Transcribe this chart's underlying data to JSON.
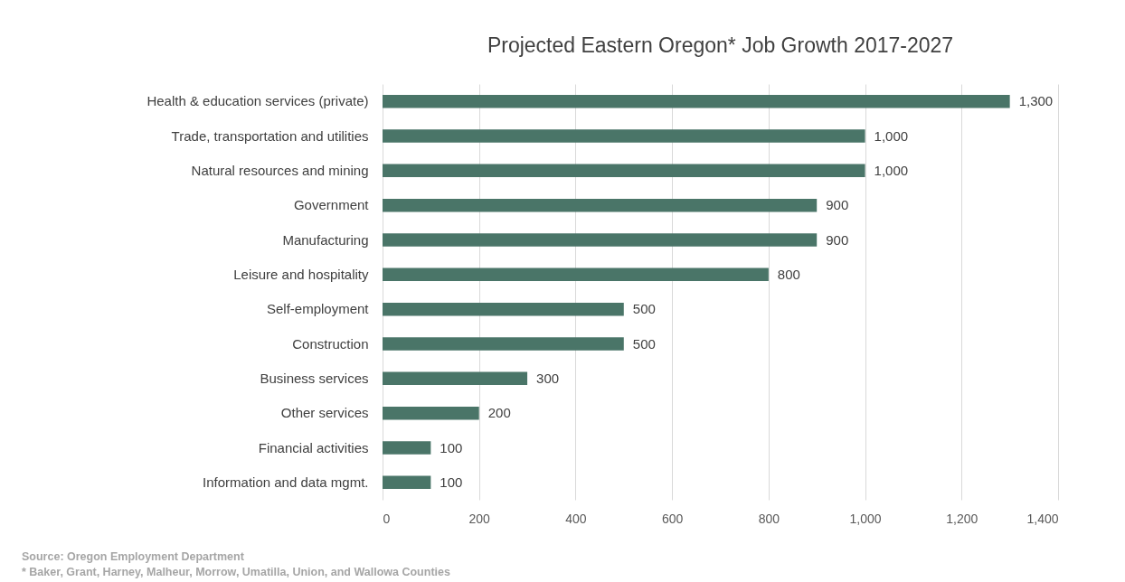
{
  "chart_data": {
    "type": "bar",
    "orientation": "horizontal",
    "title": "Projected Eastern Oregon* Job Growth 2017-2027",
    "categories": [
      "Health & education services (private)",
      "Trade, transportation and utilities",
      "Natural resources and mining",
      "Government",
      "Manufacturing",
      "Leisure and hospitality",
      "Self-employment",
      "Construction",
      "Business services",
      "Other services",
      "Financial activities",
      "Information and data mgmt."
    ],
    "values": [
      1300,
      1000,
      1000,
      900,
      900,
      800,
      500,
      500,
      300,
      200,
      100,
      100
    ],
    "value_labels": [
      "1,300",
      "1,000",
      "1,000",
      "900",
      "900",
      "800",
      "500",
      "500",
      "300",
      "200",
      "100",
      "100"
    ],
    "color": "#4a7568",
    "xlim": [
      0,
      1400
    ],
    "xticks": [
      0,
      200,
      400,
      600,
      800,
      {
        "value": 1000,
        "label": "1,000"
      },
      {
        "value": 1200,
        "label": "1,200"
      },
      {
        "value": 1400,
        "label": "1,400"
      }
    ],
    "grid": "x",
    "annotations": [
      "Source: Oregon Employment Department",
      "* Baker, Grant, Harney, Malheur, Morrow, Umatilla, Union, and Wallowa Counties"
    ]
  }
}
